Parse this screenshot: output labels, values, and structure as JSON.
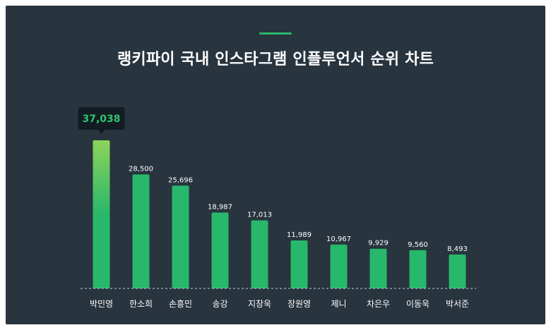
{
  "title": "랭키파이 국내 인스타그램 인플루언서 순위 차트",
  "colors": {
    "background": "#28343e",
    "accent": "#27b86b",
    "bar": "#27b86b",
    "bar_highlight_top": "#8dd45a",
    "tooltip_bg": "#121c22",
    "tooltip_text": "#2fc46f"
  },
  "chart_data": {
    "type": "bar",
    "title": "랭키파이 국내 인스타그램 인플루언서 순위 차트",
    "categories": [
      "박민영",
      "한소희",
      "손흥민",
      "송강",
      "지창욱",
      "장원영",
      "제니",
      "차은우",
      "이동욱",
      "박서준"
    ],
    "values": [
      37038,
      28500,
      25696,
      18987,
      17013,
      11989,
      10967,
      9929,
      9560,
      8493
    ],
    "labels": [
      "37,038",
      "28,500",
      "25,696",
      "18,987",
      "17,013",
      "11,989",
      "10,967",
      "9,929",
      "9,560",
      "8,493"
    ],
    "highlight_index": 0,
    "ylim": [
      0,
      38000
    ],
    "grid": false,
    "legend": "none"
  }
}
